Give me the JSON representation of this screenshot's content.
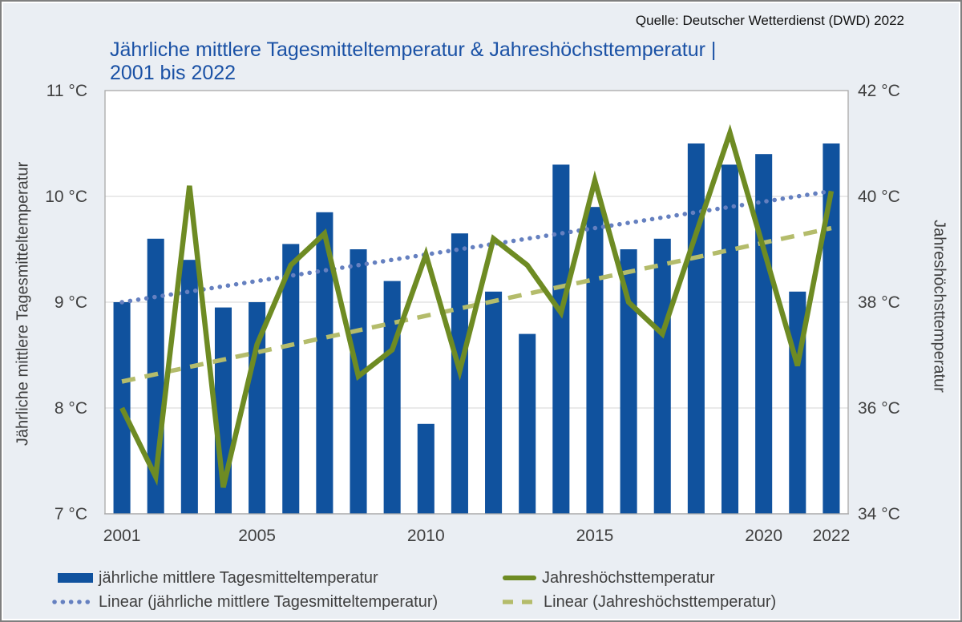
{
  "page": {
    "source": "Quelle: Deutscher Wetterdienst (DWD) 2022"
  },
  "title": {
    "line1": "Jährliche mittlere Tagesmitteltemperatur & Jahreshöchsttemperatur |",
    "line2": "2001 bis 2022"
  },
  "axes": {
    "left_title": "Jährliche mittlere Tagesmitteltemperatur",
    "right_title": "Jahreshöchsttemperatur",
    "left_ticks": [
      {
        "label": "11 °C",
        "value": 11
      },
      {
        "label": "10 °C",
        "value": 10
      },
      {
        "label": "9 °C",
        "value": 9
      },
      {
        "label": "8 °C",
        "value": 8
      },
      {
        "label": "7 °C",
        "value": 7
      }
    ],
    "right_ticks": [
      {
        "label": "42 °C",
        "value": 42
      },
      {
        "label": "40 °C",
        "value": 40
      },
      {
        "label": "38 °C",
        "value": 38
      },
      {
        "label": "36 °C",
        "value": 36
      },
      {
        "label": "34 °C",
        "value": 34
      }
    ],
    "x_ticks": [
      {
        "label": "2001",
        "year": 2001
      },
      {
        "label": "2005",
        "year": 2005
      },
      {
        "label": "2010",
        "year": 2010
      },
      {
        "label": "2015",
        "year": 2015
      },
      {
        "label": "2020",
        "year": 2020
      },
      {
        "label": "2022",
        "year": 2022
      }
    ]
  },
  "legend": {
    "bar_label": "jährliche mittlere Tagesmitteltemperatur",
    "line_label": "Jahreshöchsttemperatur",
    "trend_mean_label": "Linear (jährliche mittlere Tagesmitteltemperatur)",
    "trend_max_label": "Linear (Jahreshöchsttemperatur)"
  },
  "colors": {
    "bar": "#10529e",
    "max_line": "#6e8b23",
    "trend_mean": "#6580c0",
    "trend_max": "#b4bc6b",
    "title": "#1a51a5",
    "text": "#3f3f3f",
    "grid": "#d6d6d6",
    "plot_border": "#a9a9a9",
    "background": "#eaeef3",
    "plot_background": "#ffffff"
  },
  "chart_data": {
    "type": "bar+line",
    "title": "Jährliche mittlere Tagesmitteltemperatur & Jahreshöchsttemperatur | 2001 bis 2022",
    "source": "Quelle: Deutscher Wetterdienst (DWD) 2022",
    "categories": [
      2001,
      2002,
      2003,
      2004,
      2005,
      2006,
      2007,
      2008,
      2009,
      2010,
      2011,
      2012,
      2013,
      2014,
      2015,
      2016,
      2017,
      2018,
      2019,
      2020,
      2021,
      2022
    ],
    "series": [
      {
        "name": "jährliche mittlere Tagesmitteltemperatur",
        "type": "bar",
        "axis": "left",
        "unit": "°C",
        "values": [
          9.0,
          9.6,
          9.4,
          8.95,
          9.0,
          9.55,
          9.85,
          9.5,
          9.2,
          7.85,
          9.65,
          9.1,
          8.7,
          10.3,
          9.9,
          9.5,
          9.6,
          10.5,
          10.3,
          10.4,
          9.1,
          10.5
        ]
      },
      {
        "name": "Jahreshöchsttemperatur",
        "type": "line",
        "axis": "right",
        "unit": "°C",
        "values": [
          36.0,
          34.7,
          40.2,
          34.5,
          37.2,
          38.7,
          39.3,
          36.6,
          37.1,
          38.9,
          36.7,
          39.2,
          38.7,
          37.8,
          40.3,
          38.0,
          37.4,
          39.3,
          41.2,
          39.0,
          36.8,
          40.1
        ]
      },
      {
        "name": "Linear (jährliche mittlere Tagesmitteltemperatur)",
        "type": "trendline",
        "axis": "left",
        "unit": "°C",
        "endpoints": [
          9.0,
          10.05
        ]
      },
      {
        "name": "Linear (Jahreshöchsttemperatur)",
        "type": "trendline",
        "axis": "right",
        "unit": "°C",
        "endpoints": [
          36.5,
          39.4
        ]
      }
    ],
    "left_axis": {
      "label": "Jährliche mittlere Tagesmitteltemperatur",
      "range": [
        7,
        11
      ],
      "tick_step": 1,
      "unit": "°C"
    },
    "right_axis": {
      "label": "Jahreshöchsttemperatur",
      "range": [
        34,
        42
      ],
      "tick_step": 2,
      "unit": "°C"
    },
    "x_axis_shown_labels": [
      "2001",
      "2005",
      "2010",
      "2015",
      "2020",
      "2022"
    ],
    "grid": "horizontal-only",
    "legend_position": "bottom"
  }
}
